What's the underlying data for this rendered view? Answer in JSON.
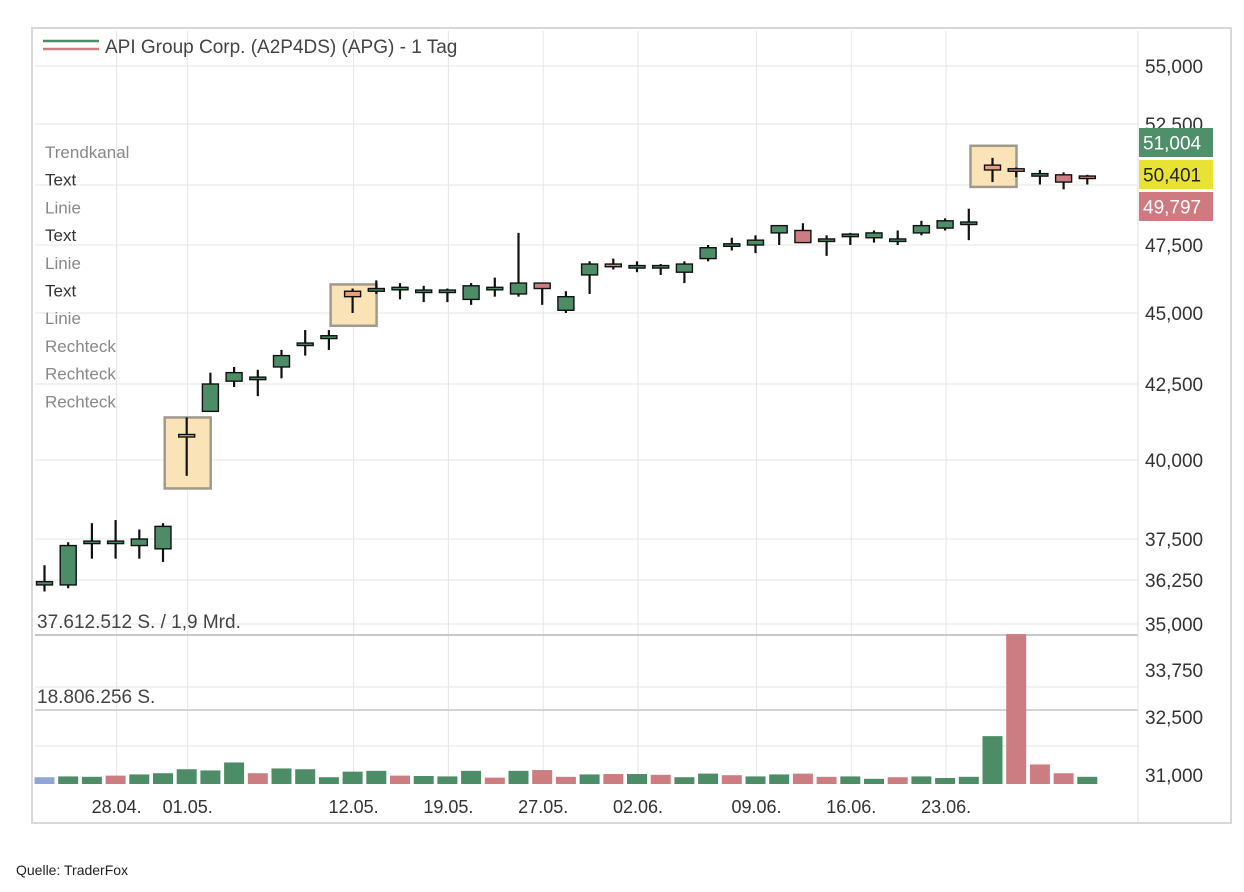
{
  "source": "Quelle: TraderFox",
  "overlay_menu": [
    {
      "label": "Trendkanal",
      "color": "#888888"
    },
    {
      "label": "Text",
      "color": "#333333"
    },
    {
      "label": "Linie",
      "color": "#888888"
    },
    {
      "label": "Text",
      "color": "#333333"
    },
    {
      "label": "Linie",
      "color": "#888888"
    },
    {
      "label": "Text",
      "color": "#333333"
    },
    {
      "label": "Linie",
      "color": "#888888"
    },
    {
      "label": "Rechteck",
      "color": "#888888"
    },
    {
      "label": "Rechteck",
      "color": "#888888"
    },
    {
      "label": "Rechteck",
      "color": "#888888"
    }
  ],
  "price_badges": [
    {
      "value": "51,004",
      "bg": "#4f8f6a",
      "fg": "#ffffff"
    },
    {
      "value": "50,401",
      "bg": "#e8e332",
      "fg": "#222222"
    },
    {
      "value": "49,797",
      "bg": "#cf7a80",
      "fg": "#ffffff"
    }
  ],
  "colors": {
    "up": "#4c8c67",
    "down": "#cb7d82",
    "orange": "#e8a07a",
    "highlight_fill": "#fbe3b8",
    "highlight_stroke": "#a09a8c",
    "grid": "#e6e6e6",
    "volume_first": "#8fa7d8"
  },
  "chart_data": {
    "type": "candlestick",
    "title": "API Group Corp. (A2P4DS) (APG) - 1 Tag",
    "price_axis_ticks": [
      "55,000",
      "52,500",
      "47,500",
      "45,000",
      "42,500",
      "40,000",
      "37,500",
      "36,250",
      "35,000",
      "33,750",
      "32,500",
      "31,000"
    ],
    "price_axis_values": [
      55000,
      52500,
      47500,
      45000,
      42500,
      40000,
      37500,
      36250,
      35000,
      33750,
      32500,
      31000
    ],
    "price_axis_tick_labels_shown": [
      "55,000",
      "52,500",
      "47,500",
      "45,000",
      "42,500",
      "40,000",
      "37,500",
      "36,250"
    ],
    "volume_axis_tick_labels": [
      "35,000",
      "33,750",
      "32,500",
      "31,000"
    ],
    "x_tick_labels": [
      "28.04.",
      "01.05.",
      "12.05.",
      "19.05.",
      "27.05.",
      "02.06.",
      "09.06.",
      "16.06.",
      "23.06."
    ],
    "x_tick_indices": [
      3,
      6,
      13,
      17,
      21,
      25,
      30,
      34,
      38
    ],
    "volume_labels": [
      "37.612.512 S. / 1,9 Mrd.",
      "18.806.256 S."
    ],
    "volume_max": 37612512,
    "candles": [
      {
        "o": 36.1,
        "h": 36.7,
        "l": 35.9,
        "c": 36.2,
        "color": "up"
      },
      {
        "o": 36.1,
        "h": 37.4,
        "l": 36.0,
        "c": 37.3,
        "color": "up"
      },
      {
        "o": 37.4,
        "h": 38.0,
        "l": 36.9,
        "c": 37.4,
        "color": "up"
      },
      {
        "o": 37.4,
        "h": 38.1,
        "l": 36.9,
        "c": 37.4,
        "color": "up"
      },
      {
        "o": 37.3,
        "h": 37.8,
        "l": 36.9,
        "c": 37.5,
        "color": "up"
      },
      {
        "o": 37.2,
        "h": 38.0,
        "l": 36.8,
        "c": 37.9,
        "color": "up"
      },
      {
        "o": 40.8,
        "h": 41.4,
        "l": 39.5,
        "c": 40.8,
        "color": "orange"
      },
      {
        "o": 41.6,
        "h": 42.9,
        "l": 41.6,
        "c": 42.5,
        "color": "up"
      },
      {
        "o": 42.6,
        "h": 43.1,
        "l": 42.4,
        "c": 42.9,
        "color": "up"
      },
      {
        "o": 42.7,
        "h": 43.0,
        "l": 42.1,
        "c": 42.7,
        "color": "up"
      },
      {
        "o": 43.1,
        "h": 43.7,
        "l": 42.7,
        "c": 43.5,
        "color": "up"
      },
      {
        "o": 43.9,
        "h": 44.4,
        "l": 43.5,
        "c": 43.9,
        "color": "up"
      },
      {
        "o": 44.1,
        "h": 44.4,
        "l": 43.7,
        "c": 44.2,
        "color": "up"
      },
      {
        "o": 45.6,
        "h": 45.9,
        "l": 45.0,
        "c": 45.8,
        "color": "orange"
      },
      {
        "o": 45.8,
        "h": 46.2,
        "l": 45.7,
        "c": 45.9,
        "color": "up"
      },
      {
        "o": 45.9,
        "h": 46.1,
        "l": 45.5,
        "c": 45.9,
        "color": "up"
      },
      {
        "o": 45.8,
        "h": 46.0,
        "l": 45.4,
        "c": 45.8,
        "color": "up"
      },
      {
        "o": 45.8,
        "h": 45.9,
        "l": 45.4,
        "c": 45.8,
        "color": "up"
      },
      {
        "o": 45.5,
        "h": 46.1,
        "l": 45.3,
        "c": 46.0,
        "color": "up"
      },
      {
        "o": 45.9,
        "h": 46.3,
        "l": 45.6,
        "c": 45.9,
        "color": "up"
      },
      {
        "o": 45.7,
        "h": 48.0,
        "l": 45.6,
        "c": 46.1,
        "color": "up"
      },
      {
        "o": 46.1,
        "h": 46.1,
        "l": 45.3,
        "c": 45.9,
        "color": "down"
      },
      {
        "o": 45.1,
        "h": 45.8,
        "l": 45.0,
        "c": 45.6,
        "color": "up"
      },
      {
        "o": 46.4,
        "h": 46.9,
        "l": 45.7,
        "c": 46.8,
        "color": "up"
      },
      {
        "o": 46.8,
        "h": 47.0,
        "l": 46.6,
        "c": 46.7,
        "color": "down"
      },
      {
        "o": 46.7,
        "h": 46.9,
        "l": 46.5,
        "c": 46.7,
        "color": "up"
      },
      {
        "o": 46.7,
        "h": 46.8,
        "l": 46.4,
        "c": 46.7,
        "color": "up"
      },
      {
        "o": 46.5,
        "h": 46.9,
        "l": 46.1,
        "c": 46.8,
        "color": "up"
      },
      {
        "o": 47.0,
        "h": 47.5,
        "l": 46.9,
        "c": 47.4,
        "color": "up"
      },
      {
        "o": 47.5,
        "h": 47.8,
        "l": 47.3,
        "c": 47.5,
        "color": "up"
      },
      {
        "o": 47.5,
        "h": 47.9,
        "l": 47.2,
        "c": 47.7,
        "color": "up"
      },
      {
        "o": 48.0,
        "h": 48.3,
        "l": 47.5,
        "c": 48.3,
        "color": "up"
      },
      {
        "o": 48.1,
        "h": 48.4,
        "l": 47.6,
        "c": 47.6,
        "color": "down"
      },
      {
        "o": 47.7,
        "h": 47.9,
        "l": 47.1,
        "c": 47.7,
        "color": "up"
      },
      {
        "o": 47.8,
        "h": 48.0,
        "l": 47.5,
        "c": 47.9,
        "color": "up"
      },
      {
        "o": 47.8,
        "h": 48.1,
        "l": 47.6,
        "c": 48.0,
        "color": "up"
      },
      {
        "o": 47.7,
        "h": 48.1,
        "l": 47.5,
        "c": 47.7,
        "color": "up"
      },
      {
        "o": 48.0,
        "h": 48.5,
        "l": 47.9,
        "c": 48.3,
        "color": "up"
      },
      {
        "o": 48.2,
        "h": 48.6,
        "l": 48.1,
        "c": 48.5,
        "color": "up"
      },
      {
        "o": 48.4,
        "h": 49.0,
        "l": 47.7,
        "c": 48.4,
        "color": "up"
      },
      {
        "o": 50.8,
        "h": 51.1,
        "l": 50.1,
        "c": 50.6,
        "color": "orange"
      },
      {
        "o": 50.6,
        "h": 50.7,
        "l": 50.3,
        "c": 50.5,
        "color": "orange"
      },
      {
        "o": 50.4,
        "h": 50.6,
        "l": 50.0,
        "c": 50.4,
        "color": "up"
      },
      {
        "o": 50.4,
        "h": 50.5,
        "l": 49.8,
        "c": 50.1,
        "color": "down"
      },
      {
        "o": 50.3,
        "h": 50.4,
        "l": 50.0,
        "c": 50.2,
        "color": "down"
      }
    ],
    "volumes": [
      {
        "v": 1700000,
        "color": "blue"
      },
      {
        "v": 1900000,
        "color": "up"
      },
      {
        "v": 1800000,
        "color": "up"
      },
      {
        "v": 2100000,
        "color": "down"
      },
      {
        "v": 2400000,
        "color": "up"
      },
      {
        "v": 2700000,
        "color": "up"
      },
      {
        "v": 3700000,
        "color": "up"
      },
      {
        "v": 3400000,
        "color": "up"
      },
      {
        "v": 5400000,
        "color": "up"
      },
      {
        "v": 2700000,
        "color": "down"
      },
      {
        "v": 3900000,
        "color": "up"
      },
      {
        "v": 3700000,
        "color": "up"
      },
      {
        "v": 1700000,
        "color": "up"
      },
      {
        "v": 3100000,
        "color": "up"
      },
      {
        "v": 3300000,
        "color": "up"
      },
      {
        "v": 2100000,
        "color": "down"
      },
      {
        "v": 2000000,
        "color": "up"
      },
      {
        "v": 1900000,
        "color": "up"
      },
      {
        "v": 3300000,
        "color": "up"
      },
      {
        "v": 1600000,
        "color": "down"
      },
      {
        "v": 3300000,
        "color": "up"
      },
      {
        "v": 3500000,
        "color": "down"
      },
      {
        "v": 1800000,
        "color": "down"
      },
      {
        "v": 2400000,
        "color": "up"
      },
      {
        "v": 2500000,
        "color": "down"
      },
      {
        "v": 2500000,
        "color": "up"
      },
      {
        "v": 2300000,
        "color": "down"
      },
      {
        "v": 1700000,
        "color": "up"
      },
      {
        "v": 2600000,
        "color": "up"
      },
      {
        "v": 2200000,
        "color": "down"
      },
      {
        "v": 1900000,
        "color": "up"
      },
      {
        "v": 2400000,
        "color": "up"
      },
      {
        "v": 2600000,
        "color": "down"
      },
      {
        "v": 1800000,
        "color": "down"
      },
      {
        "v": 1900000,
        "color": "up"
      },
      {
        "v": 1300000,
        "color": "up"
      },
      {
        "v": 1700000,
        "color": "down"
      },
      {
        "v": 1900000,
        "color": "up"
      },
      {
        "v": 1500000,
        "color": "up"
      },
      {
        "v": 1800000,
        "color": "up"
      },
      {
        "v": 12000000,
        "color": "up"
      },
      {
        "v": 37600000,
        "color": "down"
      },
      {
        "v": 4900000,
        "color": "down"
      },
      {
        "v": 2700000,
        "color": "down"
      },
      {
        "v": 1800000,
        "color": "up"
      }
    ]
  }
}
